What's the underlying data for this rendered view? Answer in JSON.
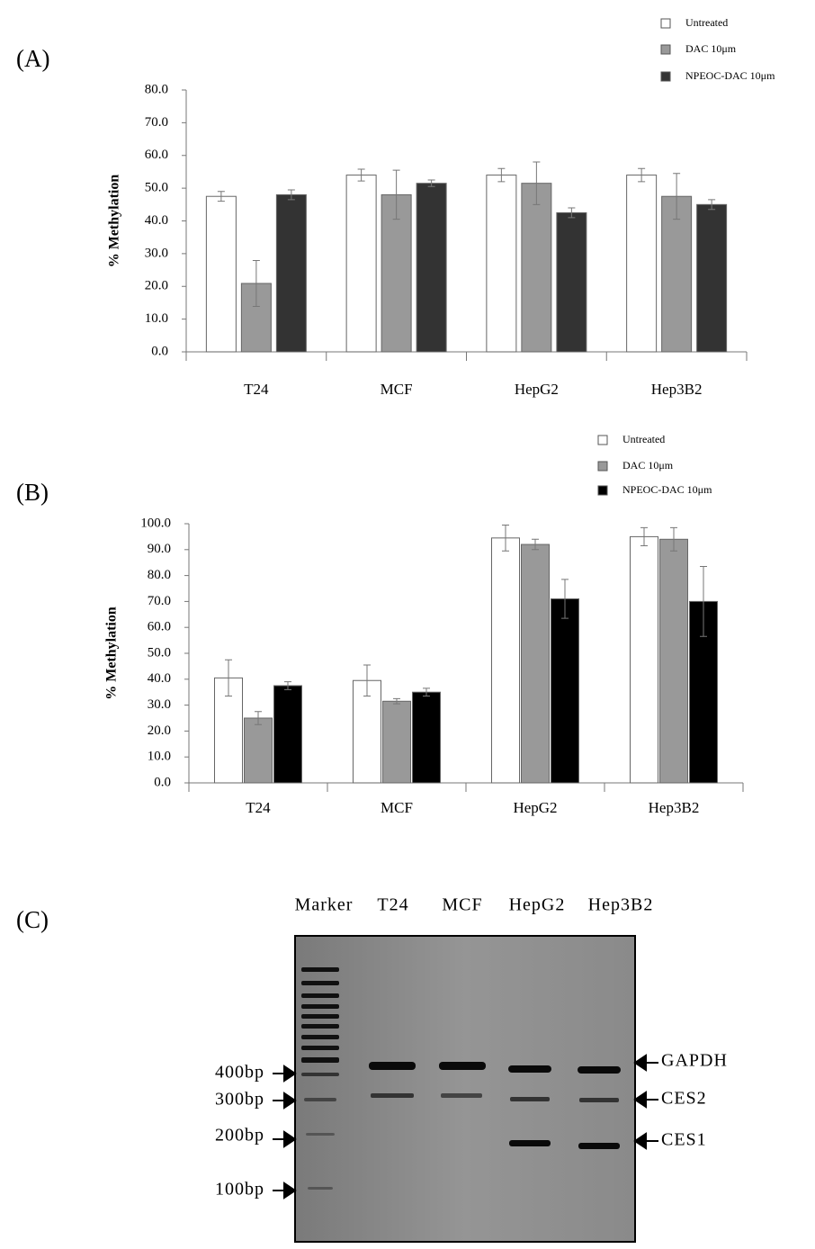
{
  "chart_data": [
    {
      "type": "bar",
      "label": "(A)",
      "y_label": "% Methylation",
      "categories": [
        "T24",
        "MCF",
        "HepG2",
        "Hep3B2"
      ],
      "series": [
        {
          "name": "Untreated",
          "color": "#ffffff",
          "values": [
            47.5,
            54,
            54,
            54
          ],
          "errors": [
            1.5,
            1.8,
            2,
            2
          ]
        },
        {
          "name": "DAC 10μm",
          "color": "#999999",
          "values": [
            20.9,
            48,
            51.5,
            47.5
          ],
          "errors": [
            7,
            7.5,
            6.5,
            7
          ]
        },
        {
          "name": "NPEOC-DAC 10μm",
          "color": "#333333",
          "values": [
            48,
            51.5,
            42.5,
            45
          ],
          "errors": [
            1.5,
            1,
            1.5,
            1.5
          ]
        }
      ],
      "ylim": [
        0,
        80
      ],
      "yticks": [
        {
          "value": 0,
          "label": "0.0"
        },
        {
          "value": 10,
          "label": "10.0"
        },
        {
          "value": 20,
          "label": "20.0"
        },
        {
          "value": 30,
          "label": "30.0"
        },
        {
          "value": 40,
          "label": "40.0"
        },
        {
          "value": 50,
          "label": "50.0"
        },
        {
          "value": 60,
          "label": "60.0"
        },
        {
          "value": 70,
          "label": "70.0"
        },
        {
          "value": 80,
          "label": "80.0"
        }
      ],
      "grid": false
    },
    {
      "type": "bar",
      "label": "(B)",
      "y_label": "% Methylation",
      "categories": [
        "T24",
        "MCF",
        "HepG2",
        "Hep3B2"
      ],
      "series": [
        {
          "name": "Untreated",
          "color": "#ffffff",
          "values": [
            40.5,
            39.5,
            94.5,
            95
          ],
          "errors": [
            7,
            6,
            5,
            3.5
          ]
        },
        {
          "name": "DAC 10μm",
          "color": "#999999",
          "values": [
            25,
            31.5,
            92,
            94
          ],
          "errors": [
            2.5,
            1,
            2,
            4.5
          ]
        },
        {
          "name": "NPEOC-DAC 10μm",
          "color": "#000000",
          "values": [
            37.5,
            35,
            71,
            70
          ],
          "errors": [
            1.5,
            1.5,
            7.5,
            13.5
          ]
        }
      ],
      "ylim": [
        0,
        100
      ],
      "yticks": [
        {
          "value": 0,
          "label": "0.0"
        },
        {
          "value": 10,
          "label": "10.0"
        },
        {
          "value": 20,
          "label": "20.0"
        },
        {
          "value": 30,
          "label": "30.0"
        },
        {
          "value": 40,
          "label": "40.0"
        },
        {
          "value": 50,
          "label": "50.0"
        },
        {
          "value": 60,
          "label": "60.0"
        },
        {
          "value": 70,
          "label": "70.0"
        },
        {
          "value": 80,
          "label": "80.0"
        },
        {
          "value": 90,
          "label": "90.0"
        },
        {
          "value": 100,
          "label": "100.0"
        }
      ],
      "grid": false
    }
  ],
  "gel": {
    "label": "(C)",
    "lanes": [
      "Marker",
      "T24",
      "MCF",
      "HepG2",
      "Hep3B2"
    ],
    "size_markers": [
      "400bp",
      "300bp",
      "200bp",
      "100bp"
    ],
    "band_labels": [
      "GAPDH",
      "CES2",
      "CES1"
    ]
  }
}
